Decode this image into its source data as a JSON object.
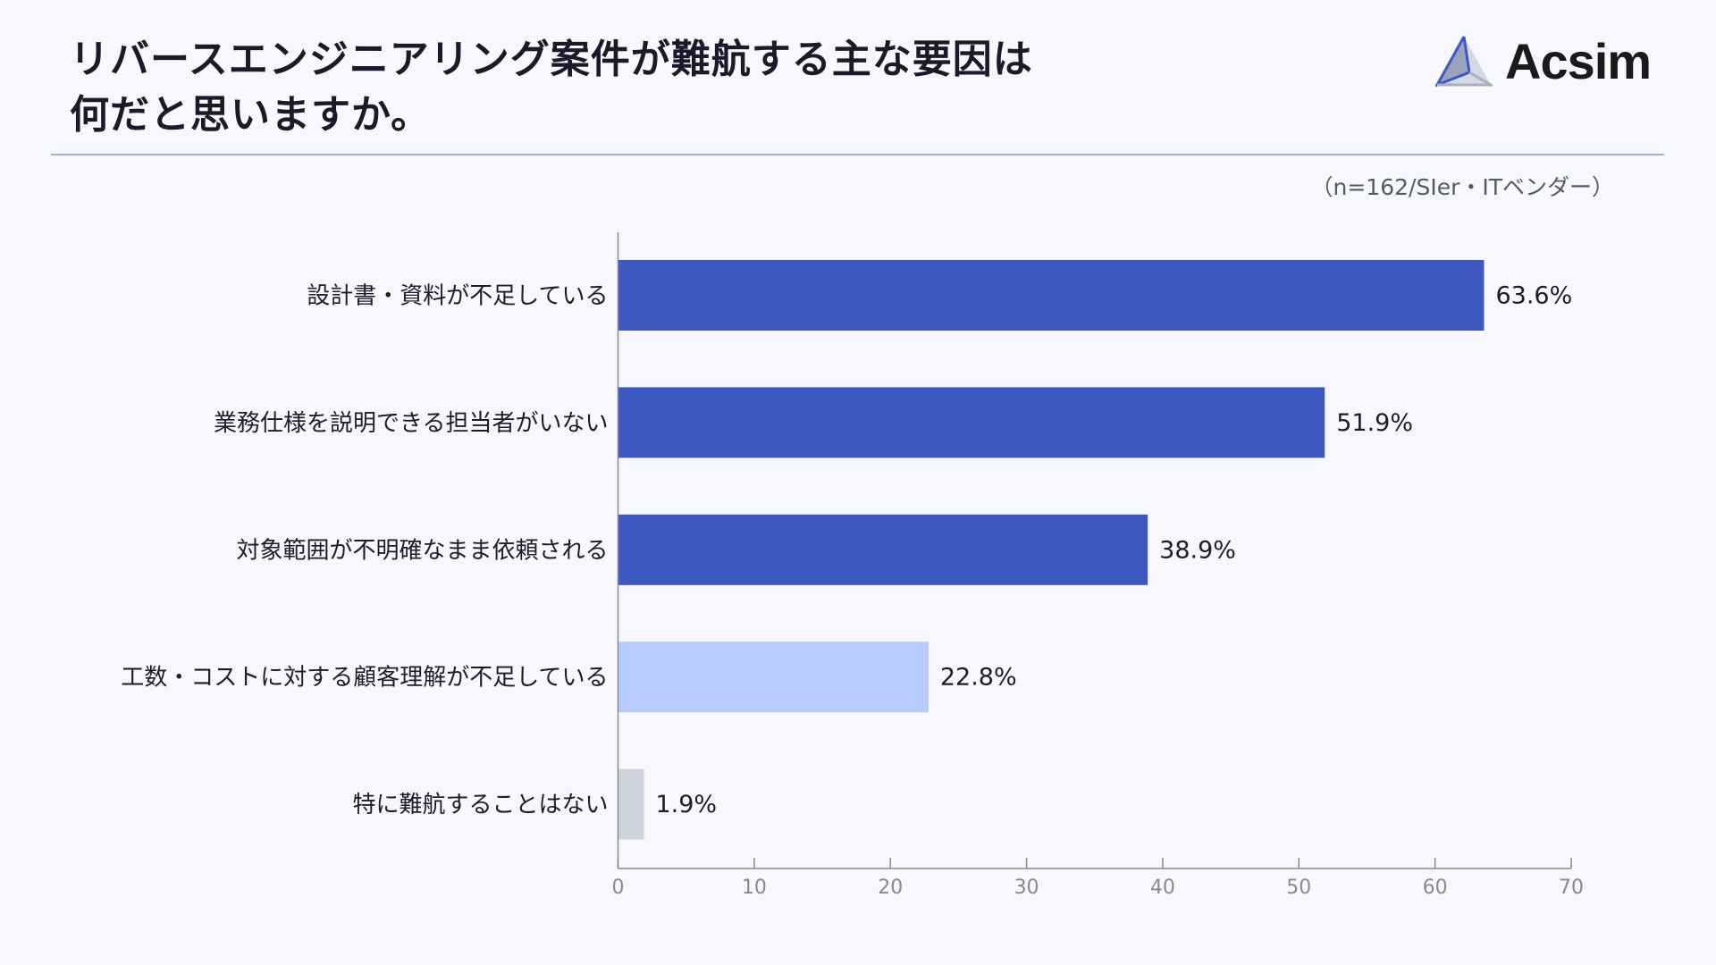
{
  "header": {
    "title_lines": [
      "リバースエンジニアリング案件が難航する主な要因は",
      "何だと思いますか。"
    ],
    "logo": "Acsim",
    "note": "（n=162/SIer・ITベンダー）"
  },
  "chart_data": {
    "type": "bar",
    "orientation": "horizontal",
    "categories": [
      "設計書・資料が不足している",
      "業務仕様を説明できる担当者がいない",
      "対象範囲が不明確なまま依頼される",
      "工数・コストに対する顧客理解が不足している",
      "特に難航することはない"
    ],
    "values": [
      63.6,
      51.9,
      38.9,
      22.8,
      1.9
    ],
    "value_labels": [
      "63.6%",
      "51.9%",
      "38.9%",
      "22.8%",
      "1.9%"
    ],
    "colors": [
      "#3d59bf",
      "#3d59bf",
      "#3d59bf",
      "#b8cbfd",
      "#d0d3da"
    ],
    "xlim": [
      0,
      70
    ],
    "xticks": [
      0,
      10,
      20,
      30,
      40,
      50,
      60,
      70
    ],
    "xtick_labels": [
      "0",
      "10",
      "20",
      "30",
      "40",
      "50",
      "60",
      "70"
    ],
    "grid": false,
    "xlabel": "",
    "ylabel": ""
  }
}
